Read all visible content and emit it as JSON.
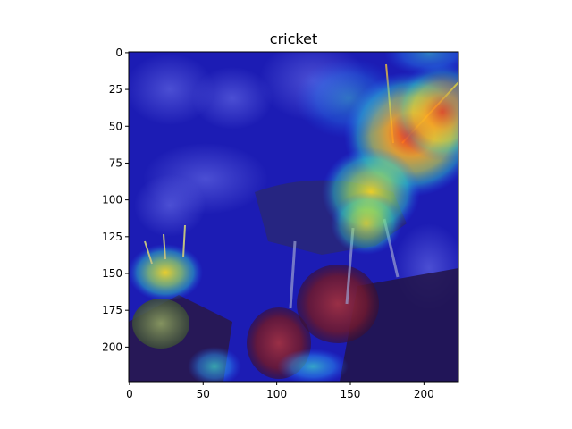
{
  "chart_data": {
    "type": "heatmap",
    "title": "cricket",
    "xlabel": "",
    "ylabel": "",
    "xlim": [
      0,
      224
    ],
    "ylim": [
      224,
      0
    ],
    "xticks": [
      0,
      50,
      100,
      150,
      200
    ],
    "yticks": [
      0,
      25,
      50,
      75,
      100,
      125,
      150,
      175,
      200
    ],
    "grid": false,
    "legend": "none",
    "colormap": "jet",
    "hotspots": [
      {
        "x": 178,
        "y": 65,
        "intensity": 1.0
      },
      {
        "x": 200,
        "y": 42,
        "intensity": 0.75
      },
      {
        "x": 165,
        "y": 95,
        "intensity": 0.7
      },
      {
        "x": 158,
        "y": 118,
        "intensity": 0.55
      },
      {
        "x": 25,
        "y": 148,
        "intensity": 0.7
      },
      {
        "x": 55,
        "y": 215,
        "intensity": 0.4
      },
      {
        "x": 120,
        "y": 215,
        "intensity": 0.3
      }
    ],
    "colors": {
      "background_overlay": "#1a1ab8",
      "hot": "#ff3010",
      "warm": "#ffe020",
      "mid": "#30d8c8",
      "cool": "#2060ff"
    }
  }
}
